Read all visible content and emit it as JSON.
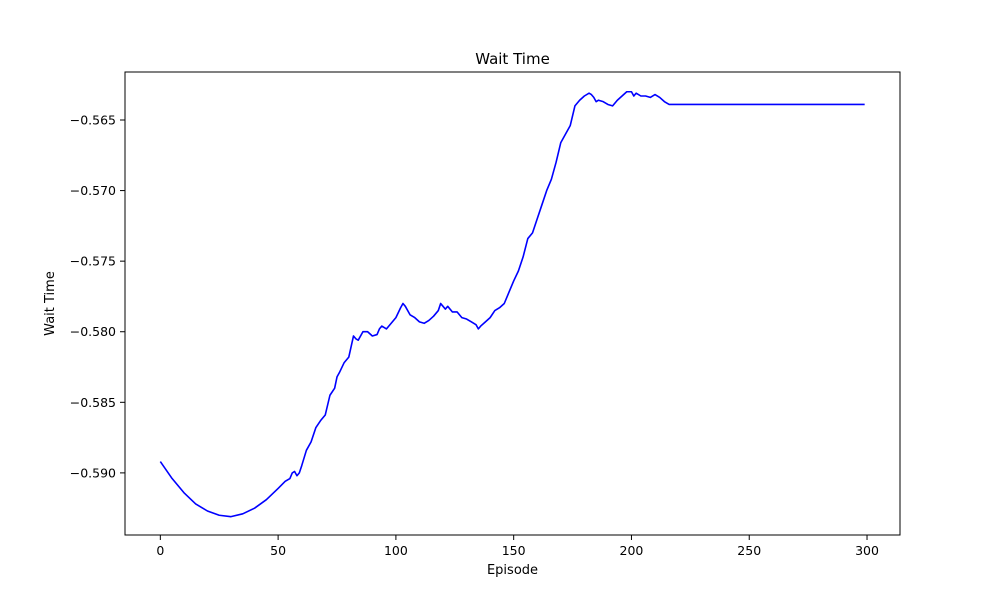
{
  "chart_data": {
    "type": "line",
    "title": "Wait Time",
    "xlabel": "Episode",
    "ylabel": "Wait Time",
    "xlim": [
      -15,
      314
    ],
    "ylim": [
      -0.5944,
      -0.5616
    ],
    "xticks": [
      0,
      50,
      100,
      150,
      200,
      250,
      300
    ],
    "yticks": [
      -0.59,
      -0.585,
      -0.58,
      -0.575,
      -0.57,
      -0.565
    ],
    "xtick_labels": [
      "0",
      "50",
      "100",
      "150",
      "200",
      "250",
      "300"
    ],
    "ytick_labels": [
      "−0.590",
      "−0.585",
      "−0.580",
      "−0.575",
      "−0.570",
      "−0.565"
    ],
    "grid": false,
    "legend": "none",
    "line_color": "#0000ff",
    "series": [
      {
        "x": [
          0,
          5,
          10,
          15,
          20,
          25,
          30,
          35,
          40,
          45,
          50,
          53,
          55,
          56,
          57,
          58,
          59,
          60,
          62,
          64,
          66,
          68,
          70,
          72,
          74,
          75,
          76,
          78,
          80,
          82,
          83,
          84,
          86,
          88,
          90,
          92,
          93,
          94,
          96,
          98,
          100,
          102,
          103,
          104,
          106,
          108,
          110,
          112,
          114,
          116,
          118,
          119,
          120,
          121,
          122,
          124,
          126,
          128,
          130,
          132,
          134,
          135,
          136,
          138,
          140,
          142,
          144,
          146,
          148,
          150,
          152,
          154,
          156,
          158,
          160,
          162,
          164,
          166,
          168,
          170,
          172,
          174,
          176,
          178,
          180,
          182,
          183,
          184,
          185,
          186,
          188,
          190,
          192,
          194,
          196,
          198,
          200,
          201,
          202,
          204,
          206,
          208,
          210,
          212,
          214,
          216,
          218,
          220,
          222,
          224,
          226,
          227,
          228,
          230,
          250,
          270,
          299
        ],
        "y": [
          -0.5892,
          -0.5904,
          -0.5914,
          -0.5922,
          -0.5927,
          -0.593,
          -0.5931,
          -0.5929,
          -0.5925,
          -0.5919,
          -0.5911,
          -0.5906,
          -0.5904,
          -0.59,
          -0.5899,
          -0.5902,
          -0.59,
          -0.5895,
          -0.5884,
          -0.5878,
          -0.5868,
          -0.5863,
          -0.5859,
          -0.5845,
          -0.584,
          -0.5832,
          -0.5829,
          -0.5822,
          -0.5818,
          -0.5803,
          -0.5805,
          -0.5806,
          -0.58,
          -0.58,
          -0.5803,
          -0.5802,
          -0.5798,
          -0.5796,
          -0.5798,
          -0.5794,
          -0.579,
          -0.5783,
          -0.578,
          -0.5782,
          -0.5788,
          -0.579,
          -0.5793,
          -0.5794,
          -0.5792,
          -0.5789,
          -0.5785,
          -0.578,
          -0.5782,
          -0.5784,
          -0.5782,
          -0.5786,
          -0.5786,
          -0.579,
          -0.5791,
          -0.5793,
          -0.5795,
          -0.5798,
          -0.5796,
          -0.5793,
          -0.579,
          -0.5785,
          -0.5783,
          -0.578,
          -0.5772,
          -0.5764,
          -0.5757,
          -0.5747,
          -0.5734,
          -0.573,
          -0.572,
          -0.571,
          -0.57,
          -0.5692,
          -0.568,
          -0.5666,
          -0.566,
          -0.5654,
          -0.564,
          -0.5636,
          -0.5633,
          -0.5631,
          -0.5632,
          -0.5634,
          -0.5637,
          -0.5636,
          -0.5637,
          -0.5639,
          -0.564,
          -0.5636,
          -0.5633,
          -0.563,
          -0.563,
          -0.5633,
          -0.5631,
          -0.5633,
          -0.5633,
          -0.5634,
          -0.5632,
          -0.5634,
          -0.5637,
          -0.5639,
          -0.5639,
          -0.5639,
          -0.5639,
          -0.5639,
          -0.5639,
          -0.5639,
          -0.5639,
          -0.5639,
          -0.5639,
          -0.5639,
          -0.5639
        ]
      }
    ]
  }
}
